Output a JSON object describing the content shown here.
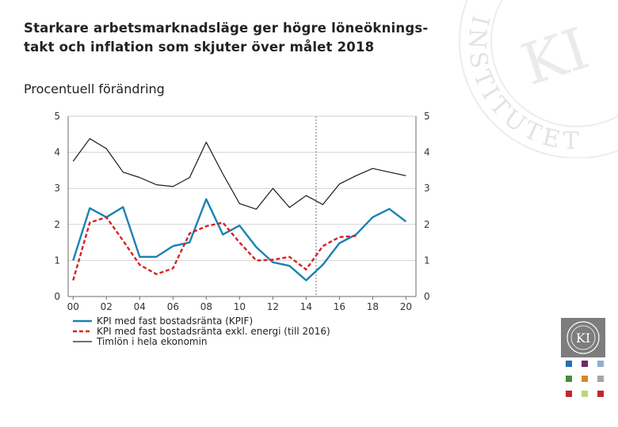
{
  "title_line1": "Starkare arbetsmarknadsläge ger högre löneöknings-",
  "title_line2": "takt och inflation som skjuter över målet 2018",
  "subtitle": "Procentuell förändring",
  "watermark_text": "INSTITUTET",
  "logo_text": "KI",
  "colors": {
    "kpif": "#1a82b4",
    "kpi_ex_energy": "#d92027",
    "wages": "#1a1a1a",
    "axis": "#6e6e6e",
    "grid": "#d2d2d2"
  },
  "chart_data": {
    "type": "line",
    "title": "",
    "xlabel": "",
    "ylabel": "Procentuell förändring",
    "xlim": [
      1999.7,
      2020.6
    ],
    "ylim": [
      0,
      5
    ],
    "x_ticks": [
      2000,
      2002,
      2004,
      2006,
      2008,
      2010,
      2012,
      2014,
      2016,
      2018,
      2020
    ],
    "x_tick_labels": [
      "00",
      "02",
      "04",
      "06",
      "08",
      "10",
      "12",
      "14",
      "16",
      "18",
      "20"
    ],
    "y_ticks": [
      0,
      1,
      2,
      3,
      4,
      5
    ],
    "y_tick_labels": [
      "0",
      "1",
      "2",
      "3",
      "4",
      "5"
    ],
    "forecast_start": 2014.6,
    "legend_position": "bottom-left",
    "series": [
      {
        "name": "KPI med fast bostadsränta (KPIF)",
        "style": "solid",
        "x": [
          2000,
          2001,
          2002,
          2003,
          2004,
          2005,
          2006,
          2007,
          2008,
          2009,
          2010,
          2011,
          2012,
          2013,
          2014,
          2015,
          2016,
          2017,
          2018,
          2019,
          2020
        ],
        "values": [
          1.0,
          2.45,
          2.2,
          2.48,
          1.1,
          1.1,
          1.4,
          1.5,
          2.7,
          1.72,
          1.97,
          1.37,
          0.95,
          0.85,
          0.45,
          0.88,
          1.48,
          1.72,
          2.2,
          2.43,
          2.08
        ]
      },
      {
        "name": "KPI med fast bostadsränta exkl. energi (till 2016)",
        "style": "dashed",
        "x": [
          2000,
          2001,
          2002,
          2003,
          2004,
          2005,
          2006,
          2007,
          2008,
          2009,
          2010,
          2011,
          2012,
          2013,
          2014,
          2015,
          2016,
          2017
        ],
        "values": [
          0.45,
          2.05,
          2.2,
          1.55,
          0.88,
          0.62,
          0.78,
          1.75,
          1.95,
          2.05,
          1.5,
          1.0,
          1.02,
          1.1,
          0.75,
          1.4,
          1.65,
          1.68
        ]
      },
      {
        "name": "Timlön i hela ekonomin",
        "style": "solid-thin",
        "x": [
          2000,
          2001,
          2002,
          2003,
          2004,
          2005,
          2006,
          2007,
          2008,
          2009,
          2010,
          2011,
          2012,
          2013,
          2014,
          2015,
          2016,
          2017,
          2018,
          2019,
          2020
        ],
        "values": [
          3.75,
          4.38,
          4.1,
          3.45,
          3.3,
          3.1,
          3.05,
          3.3,
          4.28,
          3.4,
          2.58,
          2.42,
          3.0,
          2.47,
          2.8,
          2.55,
          3.12,
          3.35,
          3.55,
          3.45,
          3.35
        ]
      }
    ]
  }
}
